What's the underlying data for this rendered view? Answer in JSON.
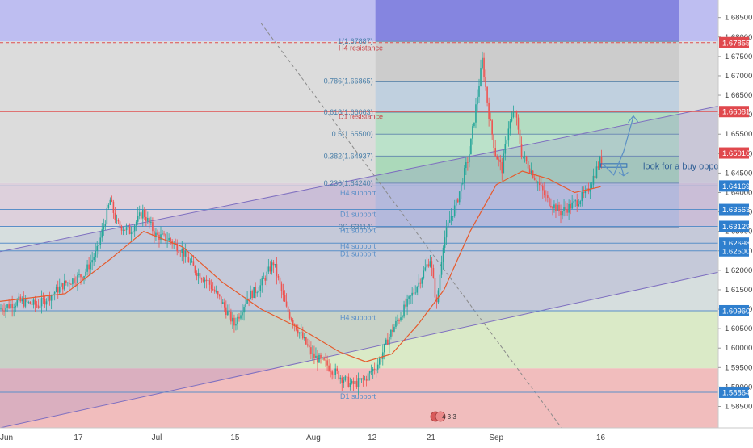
{
  "chart_data": {
    "type": "candlestick",
    "xlabel": "",
    "ylabel": "",
    "ylim": [
      1.5795,
      1.6895
    ],
    "x_ticks": [
      "Jun",
      "17",
      "Jul",
      "15",
      "Aug",
      "12",
      "21",
      "Sep",
      "16"
    ],
    "y_ticks": [
      "1.68500",
      "1.68000",
      "1.67500",
      "1.67000",
      "1.66500",
      "1.66000",
      "1.65500",
      "1.65000",
      "1.64500",
      "1.64000",
      "1.63500",
      "1.63000",
      "1.62500",
      "1.62000",
      "1.61500",
      "1.61000",
      "1.60500",
      "1.60000",
      "1.59500",
      "1.59000",
      "1.58500"
    ],
    "price_markers": [
      {
        "label": "1.67855",
        "value": 1.67855,
        "style": "dashed-red"
      },
      {
        "label": "1.66081",
        "value": 1.66081,
        "style": "red"
      },
      {
        "label": "1.65016",
        "value": 1.65016,
        "style": "red"
      },
      {
        "label": "1.64169",
        "value": 1.64169,
        "style": "blue"
      },
      {
        "label": "1.63563",
        "value": 1.63563,
        "style": "blue"
      },
      {
        "label": "1.63129",
        "value": 1.63129,
        "style": "blue"
      },
      {
        "label": "1.62698",
        "value": 1.62698,
        "style": "blue"
      },
      {
        "label": "1.62500",
        "value": 1.625,
        "style": "blue"
      },
      {
        "label": "1.60960",
        "value": 1.6096,
        "style": "blue"
      },
      {
        "label": "1.58864",
        "value": 1.58864,
        "style": "blue"
      }
    ],
    "fib_levels": [
      {
        "label": "1(1.67887)",
        "value": 1.67887
      },
      {
        "label": "0.786(1.66865)",
        "value": 1.66865
      },
      {
        "label": "0.618(1.66063)",
        "value": 1.66063
      },
      {
        "label": "0.5(1.65500)",
        "value": 1.655
      },
      {
        "label": "0.382(1.64937)",
        "value": 1.64937
      },
      {
        "label": "0.236(1.64240)",
        "value": 1.6424
      },
      {
        "label": "0(1.63114)",
        "value": 1.63114
      }
    ],
    "annotations": [
      {
        "text": "H4 resistance",
        "value": 1.6771
      },
      {
        "text": "D1 resistance",
        "value": 1.6595
      },
      {
        "text": "H4 support",
        "value": 1.6399
      },
      {
        "text": "D1 support",
        "value": 1.6344
      },
      {
        "text": "H1 support",
        "value": 1.6302
      },
      {
        "text": "H4 support",
        "value": 1.6262
      },
      {
        "text": "D1 support",
        "value": 1.6242
      },
      {
        "text": "H4 support",
        "value": 1.6078
      },
      {
        "text": "D1 support",
        "value": 1.5876
      }
    ],
    "callout": "look for a buy opportunity",
    "event_badge": "4 3 3",
    "price_path": [
      [
        0,
        1.61
      ],
      [
        3,
        1.612
      ],
      [
        6,
        1.611
      ],
      [
        10,
        1.6165
      ],
      [
        13,
        1.619
      ],
      [
        15,
        1.625
      ],
      [
        17,
        1.638
      ],
      [
        18,
        1.632
      ],
      [
        20,
        1.63
      ],
      [
        22,
        1.635
      ],
      [
        24,
        1.629
      ],
      [
        26,
        1.628
      ],
      [
        28,
        1.625
      ],
      [
        30,
        1.62
      ],
      [
        32,
        1.617
      ],
      [
        34,
        1.612
      ],
      [
        36,
        1.606
      ],
      [
        38,
        1.613
      ],
      [
        40,
        1.616
      ],
      [
        42,
        1.622
      ],
      [
        44,
        1.61
      ],
      [
        46,
        1.604
      ],
      [
        48,
        1.598
      ],
      [
        50,
        1.596
      ],
      [
        52,
        1.593
      ],
      [
        54,
        1.5905
      ],
      [
        56,
        1.592
      ],
      [
        58,
        1.596
      ],
      [
        60,
        1.604
      ],
      [
        62,
        1.61
      ],
      [
        64,
        1.616
      ],
      [
        66,
        1.623
      ],
      [
        67,
        1.611
      ],
      [
        68,
        1.627
      ],
      [
        69,
        1.633
      ],
      [
        70,
        1.637
      ],
      [
        72,
        1.65
      ],
      [
        73,
        1.662
      ],
      [
        74,
        1.674
      ],
      [
        75,
        1.66
      ],
      [
        76,
        1.65
      ],
      [
        77,
        1.646
      ],
      [
        78,
        1.657
      ],
      [
        79,
        1.661
      ],
      [
        80,
        1.65
      ],
      [
        82,
        1.644
      ],
      [
        84,
        1.638
      ],
      [
        86,
        1.635
      ],
      [
        88,
        1.637
      ],
      [
        90,
        1.64
      ],
      [
        92,
        1.648
      ]
    ],
    "ma_path": [
      [
        0,
        1.612
      ],
      [
        10,
        1.614
      ],
      [
        17,
        1.623
      ],
      [
        22,
        1.63
      ],
      [
        28,
        1.626
      ],
      [
        34,
        1.617
      ],
      [
        40,
        1.61
      ],
      [
        46,
        1.605
      ],
      [
        52,
        1.599
      ],
      [
        56,
        1.5965
      ],
      [
        60,
        1.5985
      ],
      [
        64,
        1.606
      ],
      [
        68,
        1.615
      ],
      [
        72,
        1.63
      ],
      [
        76,
        1.642
      ],
      [
        80,
        1.6455
      ],
      [
        84,
        1.6435
      ],
      [
        88,
        1.64
      ],
      [
        92,
        1.6415
      ]
    ],
    "x_tick_days": [
      0,
      12,
      24,
      36,
      48,
      57,
      66,
      76,
      92
    ],
    "x_range": [
      0,
      110
    ]
  }
}
